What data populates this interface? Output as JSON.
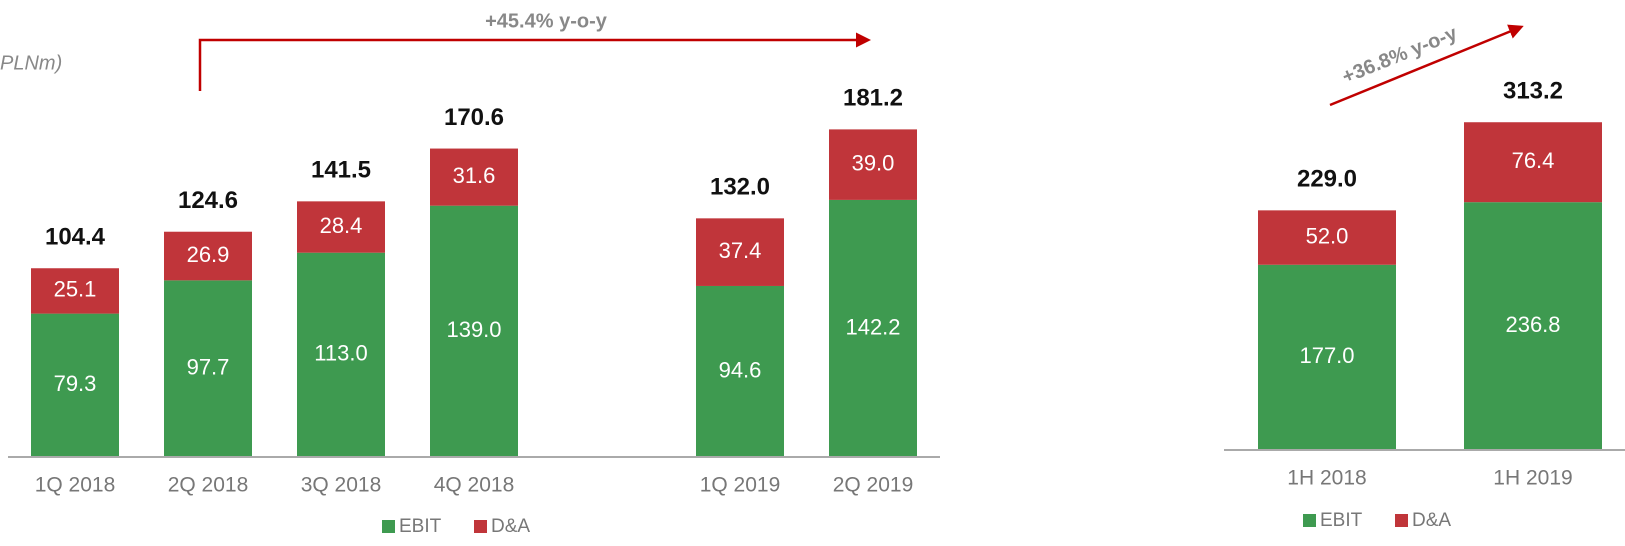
{
  "chart_data": [
    {
      "type": "bar",
      "stacked": true,
      "subtitle": "PLNm)",
      "annotation": "+45.4% y-o-y",
      "categories": [
        "1Q 2018",
        "2Q 2018",
        "3Q 2018",
        "4Q 2018",
        null,
        "1Q 2019",
        "2Q 2019"
      ],
      "series": [
        {
          "name": "EBIT",
          "color": "#3e9a50",
          "values": [
            79.3,
            97.7,
            113,
            139,
            null,
            94.6,
            142.2
          ],
          "value_labels": [
            "79.3",
            "97.7",
            "113.0",
            "139.0",
            null,
            "94.6",
            "142.2"
          ]
        },
        {
          "name": "D&A",
          "color": "#c0353a",
          "values": [
            25.1,
            26.9,
            28.4,
            31.6,
            null,
            37.4,
            39
          ],
          "value_labels": [
            "25.1",
            "26.9",
            "28.4",
            "31.6",
            null,
            "37.4",
            "39.0"
          ]
        }
      ],
      "totals": {
        "values": [
          104.4,
          124.6,
          141.5,
          170.6,
          null,
          132,
          181.2
        ],
        "value_labels": [
          "104.4",
          "124.6",
          "141.5",
          "170.6",
          null,
          "132.0",
          "181.2"
        ]
      },
      "ylim": [
        0,
        250
      ]
    },
    {
      "type": "bar",
      "stacked": true,
      "annotation": "+36.8% y-o-y",
      "categories": [
        "1H 2018",
        "1H 2019"
      ],
      "series": [
        {
          "name": "EBIT",
          "color": "#3e9a50",
          "values": [
            177,
            236.8
          ],
          "value_labels": [
            "177.0",
            "236.8"
          ]
        },
        {
          "name": "D&A",
          "color": "#c0353a",
          "values": [
            52,
            76.4
          ],
          "value_labels": [
            "52.0",
            "76.4"
          ]
        }
      ],
      "totals": {
        "values": [
          229,
          313.2
        ],
        "value_labels": [
          "229.0",
          "313.2"
        ]
      },
      "ylim": [
        0,
        430
      ]
    }
  ]
}
